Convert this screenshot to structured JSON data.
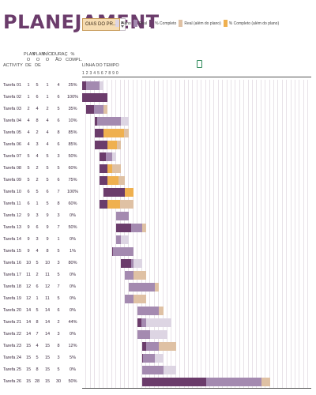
{
  "title": "PLANEJAMENT",
  "period_selector": {
    "label": "OIAS DO PR..."
  },
  "colors": {
    "plan": "#ddd5e3",
    "real": "#a48ab0",
    "pct_complete": "#6b3c6b",
    "real_beyond": "#dfc1a4",
    "pct_beyond": "#efb04f"
  },
  "legend": [
    {
      "label": "Plano",
      "color": "#ddd5e3"
    },
    {
      "label": "Real",
      "color": "#a48ab0"
    },
    {
      "label": "% Completo",
      "color": "#6b3c6b"
    },
    {
      "label": "Real (além do plano)",
      "color": "#dfc1a4"
    },
    {
      "label": "% Completo (além do plano)",
      "color": "#efb04f"
    }
  ],
  "columns": {
    "activity": "ACTIVITY",
    "plan_start": "PLAN\nO DE",
    "plan_dur": "PLAN\nO DE",
    "real_start": "INÍCI\nO",
    "real_dur": "DURAÇ\nÃO",
    "pct": "%\nCOMPL."
  },
  "timeline_label": "LINHA DO TEMPO",
  "day_numbers": "1 2 3 4 5 6 7 8 9 0",
  "tasks": [
    {
      "name": "Tarefa 01",
      "ps": 1,
      "pd": 5,
      "rs": 1,
      "rd": 4,
      "pct": "25%"
    },
    {
      "name": "Tarefa 02",
      "ps": 1,
      "pd": 6,
      "rs": 1,
      "rd": 6,
      "pct": "100%"
    },
    {
      "name": "Tarefa 03",
      "ps": 2,
      "pd": 4,
      "rs": 2,
      "rd": 5,
      "pct": "35%"
    },
    {
      "name": "Tarefa 04",
      "ps": 4,
      "pd": 8,
      "rs": 4,
      "rd": 6,
      "pct": "10%"
    },
    {
      "name": "Tarefa 05",
      "ps": 4,
      "pd": 2,
      "rs": 4,
      "rd": 8,
      "pct": "85%"
    },
    {
      "name": "Tarefa 06",
      "ps": 4,
      "pd": 3,
      "rs": 4,
      "rd": 6,
      "pct": "85%"
    },
    {
      "name": "Tarefa 07",
      "ps": 5,
      "pd": 4,
      "rs": 5,
      "rd": 3,
      "pct": "50%"
    },
    {
      "name": "Tarefa 08",
      "ps": 5,
      "pd": 2,
      "rs": 5,
      "rd": 5,
      "pct": "60%"
    },
    {
      "name": "Tarefa 09",
      "ps": 5,
      "pd": 2,
      "rs": 5,
      "rd": 6,
      "pct": "75%"
    },
    {
      "name": "Tarefa 10",
      "ps": 6,
      "pd": 5,
      "rs": 6,
      "rd": 7,
      "pct": "100%"
    },
    {
      "name": "Tarefa 11",
      "ps": 6,
      "pd": 1,
      "rs": 5,
      "rd": 8,
      "pct": "60%"
    },
    {
      "name": "Tarefa 12",
      "ps": 9,
      "pd": 3,
      "rs": 9,
      "rd": 3,
      "pct": "0%"
    },
    {
      "name": "Tarefa 13",
      "ps": 9,
      "pd": 6,
      "rs": 9,
      "rd": 7,
      "pct": "50%"
    },
    {
      "name": "Tarefa 14",
      "ps": 9,
      "pd": 3,
      "rs": 9,
      "rd": 1,
      "pct": "0%"
    },
    {
      "name": "Tarefa 15",
      "ps": 9,
      "pd": 4,
      "rs": 8,
      "rd": 5,
      "pct": "1%"
    },
    {
      "name": "Tarefa 16",
      "ps": 10,
      "pd": 5,
      "rs": 10,
      "rd": 3,
      "pct": "80%"
    },
    {
      "name": "Tarefa 17",
      "ps": 11,
      "pd": 2,
      "rs": 11,
      "rd": 5,
      "pct": "0%"
    },
    {
      "name": "Tarefa 18",
      "ps": 12,
      "pd": 6,
      "rs": 12,
      "rd": 7,
      "pct": "0%"
    },
    {
      "name": "Tarefa 19",
      "ps": 12,
      "pd": 1,
      "rs": 11,
      "rd": 5,
      "pct": "0%"
    },
    {
      "name": "Tarefa 20",
      "ps": 14,
      "pd": 5,
      "rs": 14,
      "rd": 6,
      "pct": "0%"
    },
    {
      "name": "Tarefa 21",
      "ps": 14,
      "pd": 8,
      "rs": 14,
      "rd": 2,
      "pct": "44%"
    },
    {
      "name": "Tarefa 22",
      "ps": 14,
      "pd": 7,
      "rs": 14,
      "rd": 3,
      "pct": "0%"
    },
    {
      "name": "Tarefa 23",
      "ps": 15,
      "pd": 4,
      "rs": 15,
      "rd": 8,
      "pct": "12%"
    },
    {
      "name": "Tarefa 24",
      "ps": 15,
      "pd": 5,
      "rs": 15,
      "rd": 3,
      "pct": "5%"
    },
    {
      "name": "Tarefa 25",
      "ps": 15,
      "pd": 8,
      "rs": 15,
      "rd": 5,
      "pct": "0%"
    },
    {
      "name": "Tarefa 26",
      "ps": 15,
      "pd": 28,
      "rs": 15,
      "rd": 30,
      "pct": "50%"
    }
  ]
}
